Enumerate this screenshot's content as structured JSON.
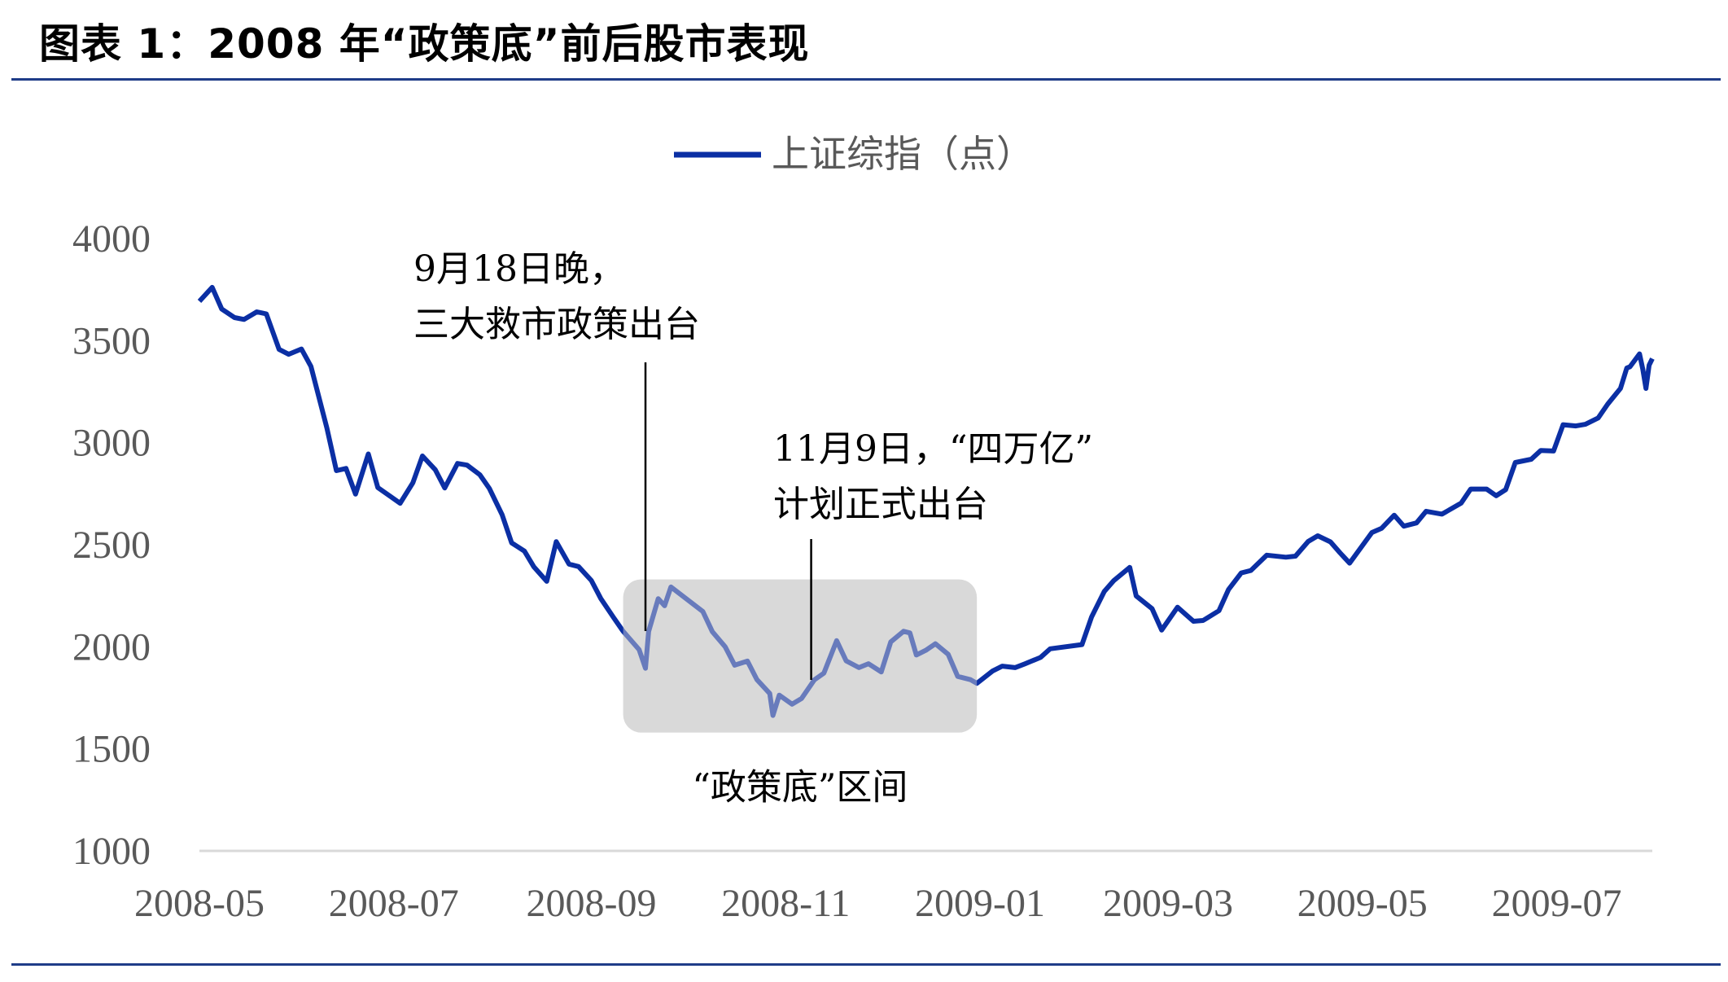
{
  "header": {
    "title": "图表 1：2008 年“政策底”前后股市表现"
  },
  "colors": {
    "line": "#0b2fa4",
    "rule": "#1f3c88",
    "zone": "#d9d9d9",
    "axis_text": "#595959"
  },
  "chart_data": {
    "type": "line",
    "x_tick_labels": [
      "2008-05",
      "2008-07",
      "2008-09",
      "2008-11",
      "2009-01",
      "2009-03",
      "2009-05",
      "2009-07"
    ],
    "y_tick_labels": [
      "1000",
      "1500",
      "2000",
      "2500",
      "3000",
      "3500",
      "4000"
    ],
    "ylim": [
      1000,
      4000
    ],
    "xlim": [
      "2008-05-01",
      "2009-07-31"
    ],
    "legend": {
      "label": "上证综指（点）",
      "position": "top-center"
    },
    "grid": false,
    "series": [
      {
        "name": "上证综指（点）",
        "points": [
          [
            "2008-05-01",
            3693
          ],
          [
            "2008-05-05",
            3761
          ],
          [
            "2008-05-08",
            3655
          ],
          [
            "2008-05-12",
            3613
          ],
          [
            "2008-05-15",
            3604
          ],
          [
            "2008-05-19",
            3641
          ],
          [
            "2008-05-22",
            3631
          ],
          [
            "2008-05-26",
            3457
          ],
          [
            "2008-05-29",
            3433
          ],
          [
            "2008-06-02",
            3459
          ],
          [
            "2008-06-05",
            3374
          ],
          [
            "2008-06-10",
            3072
          ],
          [
            "2008-06-13",
            2863
          ],
          [
            "2008-06-16",
            2874
          ],
          [
            "2008-06-19",
            2748
          ],
          [
            "2008-06-23",
            2945
          ],
          [
            "2008-06-26",
            2780
          ],
          [
            "2008-06-30",
            2736
          ],
          [
            "2008-07-03",
            2703
          ],
          [
            "2008-07-07",
            2804
          ],
          [
            "2008-07-10",
            2935
          ],
          [
            "2008-07-14",
            2868
          ],
          [
            "2008-07-17",
            2778
          ],
          [
            "2008-07-21",
            2898
          ],
          [
            "2008-07-24",
            2890
          ],
          [
            "2008-07-28",
            2843
          ],
          [
            "2008-07-31",
            2776
          ],
          [
            "2008-08-04",
            2647
          ],
          [
            "2008-08-07",
            2509
          ],
          [
            "2008-08-11",
            2469
          ],
          [
            "2008-08-14",
            2391
          ],
          [
            "2008-08-18",
            2321
          ],
          [
            "2008-08-21",
            2515
          ],
          [
            "2008-08-25",
            2405
          ],
          [
            "2008-08-28",
            2393
          ],
          [
            "2008-09-01",
            2325
          ],
          [
            "2008-09-04",
            2236
          ],
          [
            "2008-09-08",
            2143
          ],
          [
            "2008-09-11",
            2076
          ],
          [
            "2008-09-16",
            1986
          ],
          [
            "2008-09-18",
            1895
          ],
          [
            "2008-09-19",
            2075
          ],
          [
            "2008-09-22",
            2236
          ],
          [
            "2008-09-24",
            2201
          ],
          [
            "2008-09-26",
            2293
          ],
          [
            "2008-10-06",
            2173
          ],
          [
            "2008-10-09",
            2074
          ],
          [
            "2008-10-13",
            2000
          ],
          [
            "2008-10-16",
            1910
          ],
          [
            "2008-10-20",
            1930
          ],
          [
            "2008-10-23",
            1839
          ],
          [
            "2008-10-27",
            1771
          ],
          [
            "2008-10-28",
            1664
          ],
          [
            "2008-10-30",
            1763
          ],
          [
            "2008-11-03",
            1719
          ],
          [
            "2008-11-06",
            1747
          ],
          [
            "2008-11-10",
            1838
          ],
          [
            "2008-11-13",
            1871
          ],
          [
            "2008-11-17",
            2030
          ],
          [
            "2008-11-20",
            1931
          ],
          [
            "2008-11-24",
            1898
          ],
          [
            "2008-11-27",
            1917
          ],
          [
            "2008-12-01",
            1877
          ],
          [
            "2008-12-04",
            2024
          ],
          [
            "2008-12-08",
            2076
          ],
          [
            "2008-12-10",
            2068
          ],
          [
            "2008-12-12",
            1960
          ],
          [
            "2008-12-15",
            1983
          ],
          [
            "2008-12-18",
            2015
          ],
          [
            "2008-12-22",
            1963
          ],
          [
            "2008-12-25",
            1855
          ],
          [
            "2008-12-29",
            1839
          ],
          [
            "2008-12-31",
            1821
          ],
          [
            "2009-01-05",
            1882
          ],
          [
            "2009-01-08",
            1905
          ],
          [
            "2009-01-12",
            1898
          ],
          [
            "2009-01-15",
            1916
          ],
          [
            "2009-01-20",
            1948
          ],
          [
            "2009-01-23",
            1990
          ],
          [
            "2009-02-02",
            2011
          ],
          [
            "2009-02-05",
            2146
          ],
          [
            "2009-02-09",
            2271
          ],
          [
            "2009-02-12",
            2325
          ],
          [
            "2009-02-17",
            2389
          ],
          [
            "2009-02-19",
            2249
          ],
          [
            "2009-02-24",
            2187
          ],
          [
            "2009-02-27",
            2082
          ],
          [
            "2009-03-04",
            2194
          ],
          [
            "2009-03-09",
            2125
          ],
          [
            "2009-03-12",
            2129
          ],
          [
            "2009-03-17",
            2177
          ],
          [
            "2009-03-20",
            2281
          ],
          [
            "2009-03-24",
            2362
          ],
          [
            "2009-03-27",
            2374
          ],
          [
            "2009-04-01",
            2449
          ],
          [
            "2009-04-07",
            2439
          ],
          [
            "2009-04-10",
            2444
          ],
          [
            "2009-04-14",
            2516
          ],
          [
            "2009-04-17",
            2544
          ],
          [
            "2009-04-21",
            2514
          ],
          [
            "2009-04-24",
            2460
          ],
          [
            "2009-04-27",
            2410
          ],
          [
            "2009-05-04",
            2560
          ],
          [
            "2009-05-07",
            2580
          ],
          [
            "2009-05-11",
            2645
          ],
          [
            "2009-05-14",
            2591
          ],
          [
            "2009-05-18",
            2607
          ],
          [
            "2009-05-21",
            2664
          ],
          [
            "2009-05-26",
            2650
          ],
          [
            "2009-06-01",
            2704
          ],
          [
            "2009-06-04",
            2773
          ],
          [
            "2009-06-09",
            2773
          ],
          [
            "2009-06-12",
            2740
          ],
          [
            "2009-06-15",
            2770
          ],
          [
            "2009-06-18",
            2903
          ],
          [
            "2009-06-23",
            2919
          ],
          [
            "2009-06-26",
            2962
          ],
          [
            "2009-06-30",
            2959
          ],
          [
            "2009-07-03",
            3088
          ],
          [
            "2009-07-07",
            3082
          ],
          [
            "2009-07-10",
            3090
          ],
          [
            "2009-07-14",
            3121
          ],
          [
            "2009-07-17",
            3189
          ],
          [
            "2009-07-21",
            3266
          ],
          [
            "2009-07-23",
            3366
          ],
          [
            "2009-07-24",
            3372
          ],
          [
            "2009-07-27",
            3435
          ],
          [
            "2009-07-28",
            3360
          ],
          [
            "2009-07-29",
            3266
          ],
          [
            "2009-07-30",
            3380
          ],
          [
            "2009-07-31",
            3412
          ]
        ]
      }
    ],
    "annotations": [
      {
        "line1": "9月18日晚，",
        "line2": "三大救市政策出台",
        "date": "2008-09-18"
      },
      {
        "line1": "11月9日，“四万亿”",
        "line2": "计划正式出台",
        "date": "2008-11-09"
      }
    ],
    "shaded_region": {
      "label": "“政策底”区间",
      "x_start": "2008-09-11",
      "x_end": "2008-12-31",
      "y_start": 1580,
      "y_end": 2330
    }
  }
}
